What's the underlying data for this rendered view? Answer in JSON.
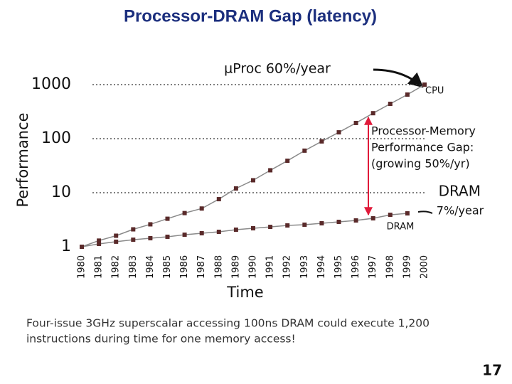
{
  "chart_data": {
    "type": "line",
    "title": "Processor-DRAM Gap (latency)",
    "xlabel": "Time",
    "ylabel": "Performance",
    "categories": [
      "1980",
      "1981",
      "1982",
      "1983",
      "1984",
      "1985",
      "1986",
      "1987",
      "1988",
      "1989",
      "1990",
      "1991",
      "1992",
      "1993",
      "1994",
      "1995",
      "1996",
      "1997",
      "1998",
      "1999",
      "2000"
    ],
    "series": [
      {
        "name": "CPU",
        "color": "#5a2a2a",
        "values": [
          1,
          1.3,
          1.6,
          2.1,
          2.6,
          3.3,
          4.2,
          5.1,
          7.6,
          12,
          17,
          26,
          39,
          60,
          89,
          131,
          195,
          296,
          441,
          654,
          1000
        ]
      },
      {
        "name": "DRAM",
        "color": "#5a2a2a",
        "values": [
          1,
          1.13,
          1.24,
          1.35,
          1.44,
          1.53,
          1.67,
          1.78,
          1.89,
          2.07,
          2.2,
          2.33,
          2.48,
          2.56,
          2.72,
          2.89,
          3.07,
          3.36,
          3.9,
          4.15,
          null
        ]
      }
    ],
    "ylim": [
      1,
      1000
    ],
    "yticks": [
      1,
      10,
      100,
      1000
    ],
    "log_scale": true,
    "grid": true,
    "annotations": [
      "µProc 60%/year",
      "Processor-Memory",
      "Performance Gap:",
      "(growing 50%/yr)",
      "DRAM",
      "7%/year"
    ],
    "footnote": [
      "Four-issue 3GHz superscalar accessing 100ns DRAM could execute 1,200",
      "instructions during time for one memory access!"
    ],
    "page_number": "17"
  }
}
